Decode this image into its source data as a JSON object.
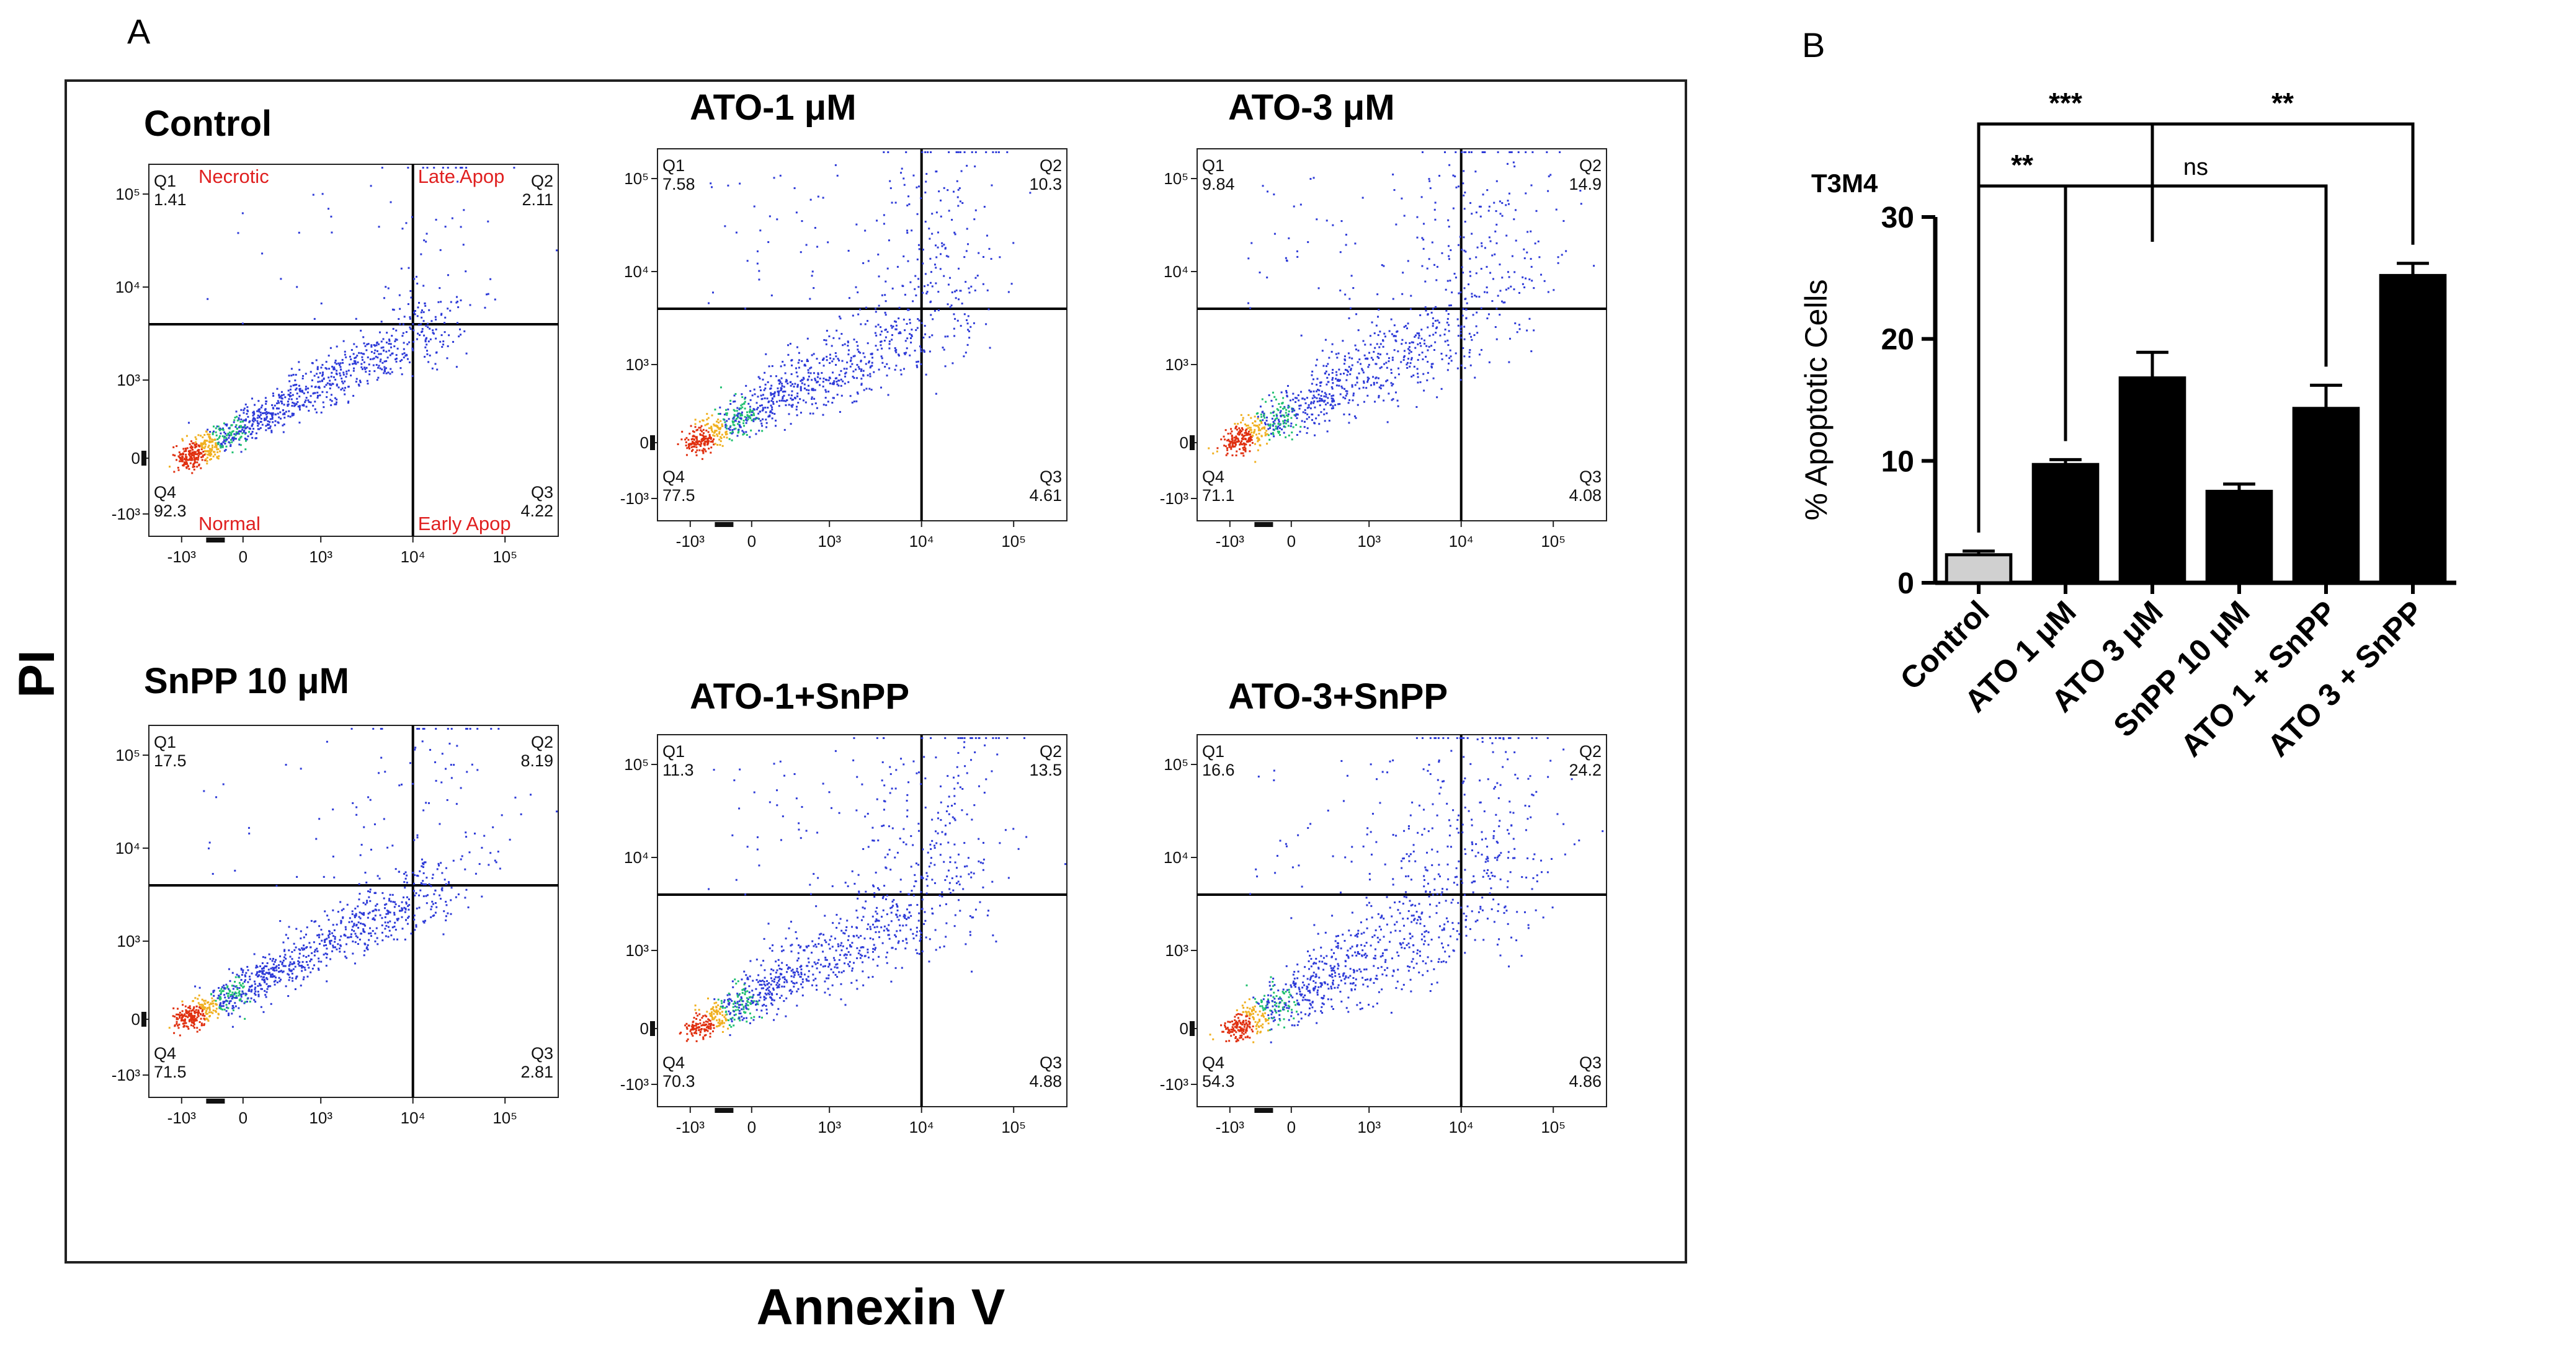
{
  "panel_a": {
    "letter": "A",
    "y_axis_label": "PI",
    "x_axis_label": "Annexin V",
    "tick_labels": {
      "x": [
        "-10³",
        "0",
        "10³",
        "10⁴",
        "10⁵"
      ],
      "y": [
        "10⁵",
        "10⁴",
        "10³",
        "0",
        "-10³"
      ]
    },
    "quadrant_names": {
      "q1": "Necrotic",
      "q2": "Late Apop",
      "q3": "Early Apop",
      "q4": "Normal"
    },
    "plots": [
      {
        "title": "Control",
        "q1": "1.41",
        "q2": "2.11",
        "q3": "4.22",
        "q4": "92.3",
        "q1_label": "Q1",
        "q2_label": "Q2",
        "q3_label": "Q3",
        "q4_label": "Q4",
        "spread": 0.35
      },
      {
        "title": "ATO-1  μM",
        "q1": "7.58",
        "q2": "10.3",
        "q3": "4.61",
        "q4": "77.5",
        "q1_label": "Q1",
        "q2_label": "Q2",
        "q3_label": "Q3",
        "q4_label": "Q4",
        "spread": 0.7
      },
      {
        "title": "ATO-3  μM",
        "q1": "9.84",
        "q2": "14.9",
        "q3": "4.08",
        "q4": "71.1",
        "q1_label": "Q1",
        "q2_label": "Q2",
        "q3_label": "Q3",
        "q4_label": "Q4",
        "spread": 0.85
      },
      {
        "title": "SnPP 10  μM",
        "q1": "17.5",
        "q2": "8.19",
        "q3": "2.81",
        "q4": "71.5",
        "q1_label": "Q1",
        "q2_label": "Q2",
        "q3_label": "Q3",
        "q4_label": "Q4",
        "spread": 0.45
      },
      {
        "title": "ATO-1+SnPP",
        "q1": "11.3",
        "q2": "13.5",
        "q3": "4.88",
        "q4": "70.3",
        "q1_label": "Q1",
        "q2_label": "Q2",
        "q3_label": "Q3",
        "q4_label": "Q4",
        "spread": 0.75
      },
      {
        "title": "ATO-3+SnPP",
        "q1": "16.6",
        "q2": "24.2",
        "q3": "4.86",
        "q4": "54.3",
        "q1_label": "Q1",
        "q2_label": "Q2",
        "q3_label": "Q3",
        "q4_label": "Q4",
        "spread": 1.0
      }
    ]
  },
  "panel_b": {
    "letter": "B",
    "cell_line": "T3M4",
    "ylabel": "% Apoptotic Cells",
    "significance": {
      "ctrl_ato3": "***",
      "ato3_ato3snpp": "**",
      "ctrl_ato1": "**",
      "ato1_ato1snpp": "ns"
    }
  },
  "chart_data": {
    "type": "bar",
    "categories": [
      "Control",
      "ATO 1 μM",
      "ATO 3 μM",
      "SnPP 10 μM",
      "ATO 1 + SnPP",
      "ATO 3 + SnPP"
    ],
    "values": [
      2.3,
      9.7,
      16.8,
      7.5,
      14.3,
      25.2
    ],
    "errors": [
      0.3,
      0.4,
      2.1,
      0.6,
      1.9,
      1.0
    ],
    "colors": [
      "#d0d0d0",
      "#000000",
      "#000000",
      "#000000",
      "#000000",
      "#000000"
    ],
    "ylabel": "% Apoptotic Cells",
    "ylim": [
      0,
      30
    ],
    "yticks": [
      0,
      10,
      20,
      30
    ],
    "title": "T3M4"
  }
}
